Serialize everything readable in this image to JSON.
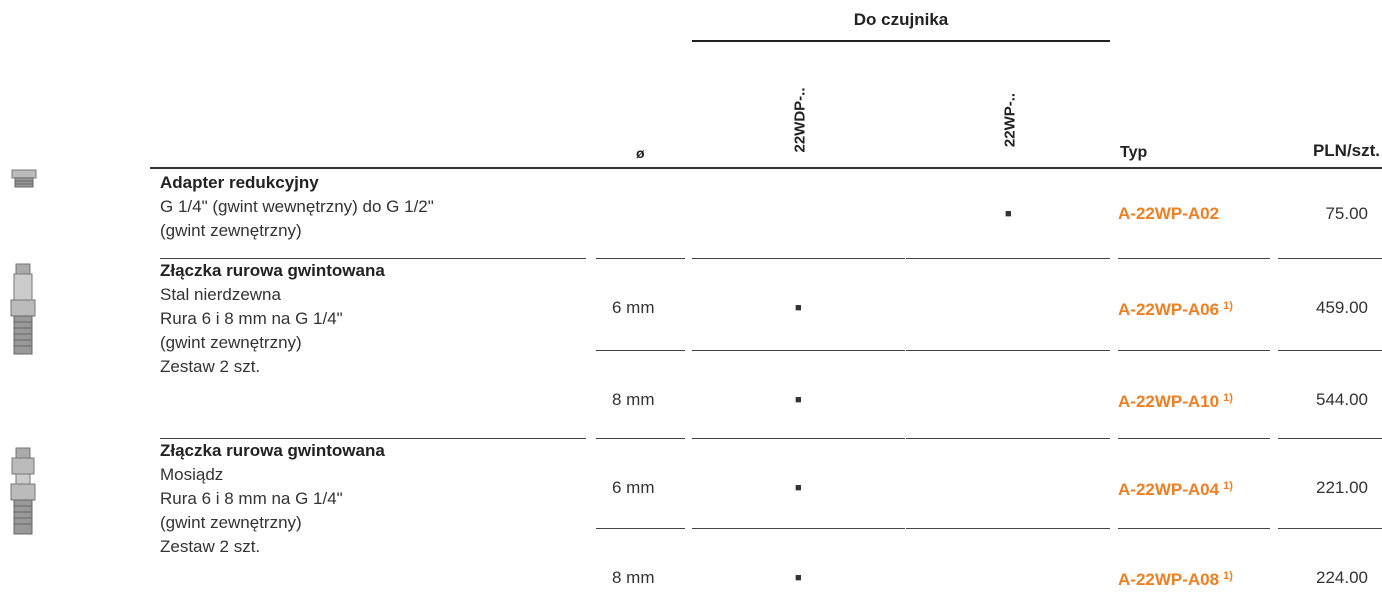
{
  "header": {
    "group": "Do czujnika",
    "diameter": "ø",
    "sensor_a": "22WDP-..",
    "sensor_b": "22WP-..",
    "type": "Typ",
    "price": "PLN/szt."
  },
  "products": [
    {
      "title": "Adapter redukcyjny",
      "lines": [
        "G 1/4\" (gwint wewnętrzny) do G 1/2\"",
        "(gwint zewnętrzny)"
      ],
      "variants": [
        {
          "diameter": null,
          "sensor_a": null,
          "sensor_b": "■",
          "type": "A-22WP-A02",
          "note": null,
          "price": "75.00"
        }
      ]
    },
    {
      "title": "Złączka rurowa gwintowana",
      "lines": [
        "Stal nierdzewna",
        "Rura 6 i 8 mm na G 1/4\"",
        "(gwint zewnętrzny)",
        "Zestaw 2 szt."
      ],
      "variants": [
        {
          "diameter": "6 mm",
          "sensor_a": "■",
          "sensor_b": null,
          "type": "A-22WP-A06",
          "note": "1)",
          "price": "459.00"
        },
        {
          "diameter": "8 mm",
          "sensor_a": "■",
          "sensor_b": null,
          "type": "A-22WP-A10",
          "note": "1)",
          "price": "544.00"
        }
      ]
    },
    {
      "title": "Złączka rurowa gwintowana",
      "lines": [
        "Mosiądz",
        "Rura 6 i 8 mm na G 1/4\"",
        "(gwint zewnętrzny)",
        "Zestaw 2 szt."
      ],
      "variants": [
        {
          "diameter": "6 mm",
          "sensor_a": "■",
          "sensor_b": null,
          "type": "A-22WP-A04",
          "note": "1)",
          "price": "221.00"
        },
        {
          "diameter": "8 mm",
          "sensor_a": "■",
          "sensor_b": null,
          "type": "A-22WP-A08",
          "note": "1)",
          "price": "224.00"
        }
      ]
    }
  ]
}
